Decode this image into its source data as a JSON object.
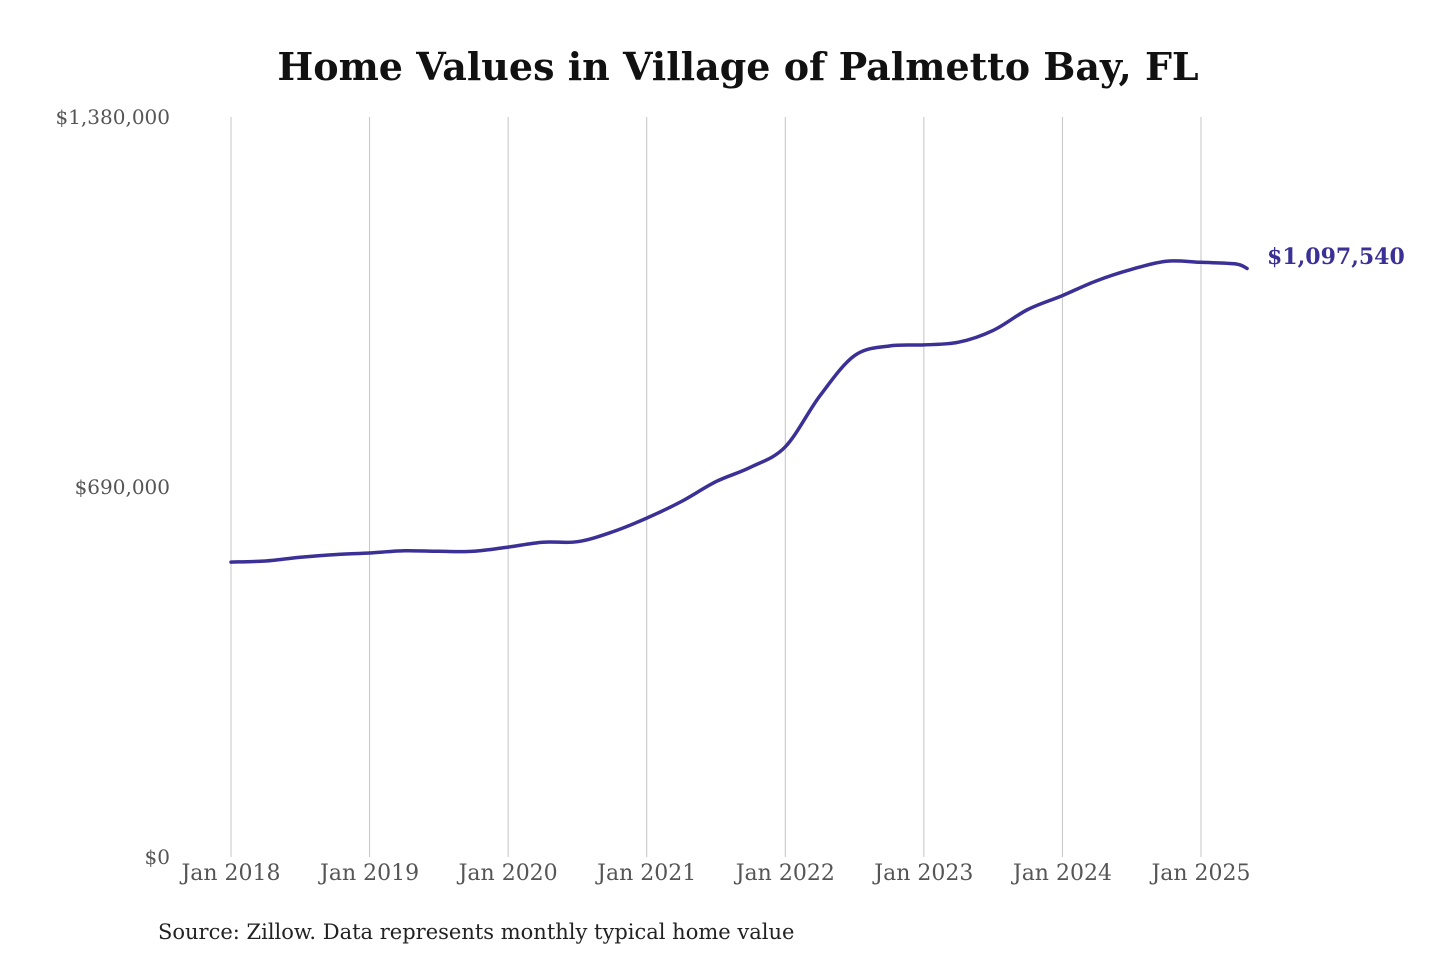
{
  "colors": {
    "line": "#3a3096",
    "end_label": "#3a3096"
  },
  "chart_data": {
    "type": "line",
    "title": "Home Values in Village of Palmetto Bay, FL",
    "ylim": [
      0,
      1380000
    ],
    "y_ticks": [
      {
        "value": 1380000,
        "label": "$1,380,000"
      },
      {
        "value": 690000,
        "label": "$690,000"
      },
      {
        "value": 0,
        "label": "$0"
      }
    ],
    "x_ticks": [
      {
        "value": 2018.0,
        "label": "Jan 2018"
      },
      {
        "value": 2019.0,
        "label": "Jan 2019"
      },
      {
        "value": 2020.0,
        "label": "Jan 2020"
      },
      {
        "value": 2021.0,
        "label": "Jan 2021"
      },
      {
        "value": 2022.0,
        "label": "Jan 2022"
      },
      {
        "value": 2023.0,
        "label": "Jan 2023"
      },
      {
        "value": 2024.0,
        "label": "Jan 2024"
      },
      {
        "value": 2025.0,
        "label": "Jan 2025"
      }
    ],
    "xlim": [
      2018.0,
      2025.333
    ],
    "grid": "vertical",
    "series": [
      {
        "x": [
          2018.0,
          2018.25,
          2018.5,
          2018.75,
          2019.0,
          2019.25,
          2019.5,
          2019.75,
          2020.0,
          2020.25,
          2020.5,
          2020.75,
          2021.0,
          2021.25,
          2021.5,
          2021.75,
          2022.0,
          2022.25,
          2022.5,
          2022.75,
          2023.0,
          2023.25,
          2023.5,
          2023.75,
          2024.0,
          2024.25,
          2024.5,
          2024.75,
          2025.0,
          2025.25,
          2025.333
        ],
        "y": [
          550000,
          552000,
          559000,
          564000,
          567000,
          571000,
          570000,
          570000,
          578000,
          587000,
          588000,
          606000,
          632000,
          663000,
          700000,
          727000,
          765000,
          860000,
          935000,
          953000,
          955000,
          960000,
          982000,
          1021000,
          1047000,
          1075000,
          1096000,
          1111000,
          1109000,
          1106000,
          1097540
        ]
      }
    ],
    "end_label": "$1,097,540",
    "source": "Source: Zillow. Data represents monthly typical home value"
  }
}
